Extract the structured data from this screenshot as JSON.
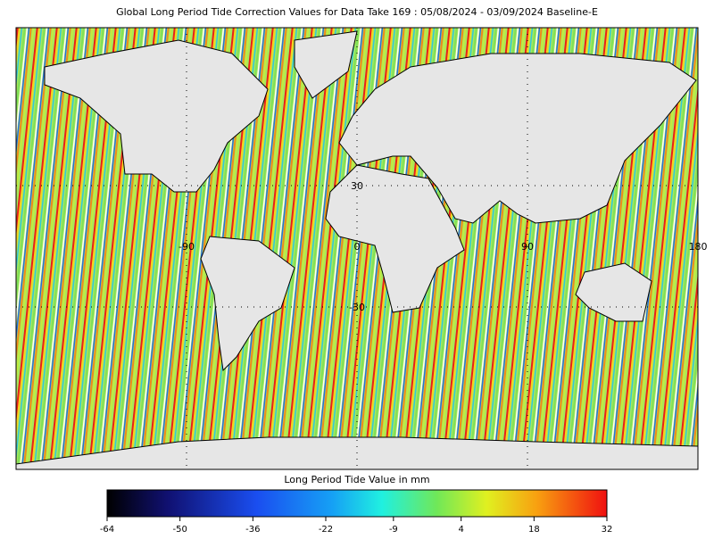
{
  "title": "Global Long Period Tide Correction Values for Data Take 169 : 05/08/2024 - 03/09/2024 Baseline-E",
  "map": {
    "lon_labels": [
      -90,
      0,
      90,
      180
    ],
    "lat_labels": [
      30,
      -30
    ]
  },
  "colorbar": {
    "label": "Long Period Tide Value in mm",
    "lim": [
      -64,
      32
    ],
    "ticks": [
      -64,
      -50,
      -36,
      -22,
      -9,
      4,
      18,
      32
    ]
  }
}
